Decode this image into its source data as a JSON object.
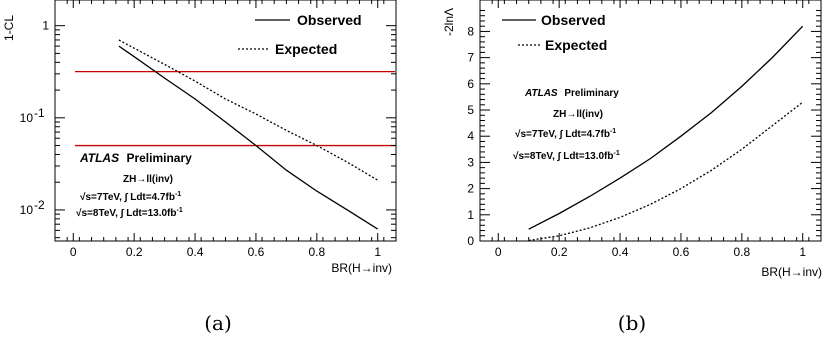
{
  "chart_data": [
    {
      "type": "line",
      "panel_caption": "(a)",
      "ylabel": "1-CL",
      "xlabel": "BR(H→inv)",
      "xlim": [
        -0.06,
        1.06
      ],
      "ylim": [
        0.0046,
        1.9
      ],
      "yscale": "log",
      "x_ticks": [
        "0",
        "0.2",
        "0.4",
        "0.6",
        "0.8",
        "1"
      ],
      "y_ticks": [
        {
          "v": 1,
          "t": "1"
        },
        {
          "v": 0.1,
          "t": "10"
        },
        {
          "v": 0.01,
          "t": "10"
        }
      ],
      "y_tick_exponents": [
        "",
        "-1",
        "-2"
      ],
      "series": [
        {
          "name": "Observed",
          "style": "solid",
          "color": "#000000",
          "x": [
            0.15,
            0.2,
            0.3,
            0.4,
            0.5,
            0.6,
            0.7,
            0.8,
            0.9,
            1.0
          ],
          "y": [
            0.6,
            0.46,
            0.27,
            0.16,
            0.09,
            0.05,
            0.027,
            0.016,
            0.01,
            0.0062
          ]
        },
        {
          "name": "Expected",
          "style": "dotted",
          "color": "#000000",
          "x": [
            0.15,
            0.2,
            0.3,
            0.4,
            0.5,
            0.6,
            0.7,
            0.8,
            0.9,
            1.0
          ],
          "y": [
            0.7,
            0.57,
            0.38,
            0.25,
            0.16,
            0.11,
            0.073,
            0.05,
            0.033,
            0.021
          ]
        }
      ],
      "hlines": [
        {
          "y": 0.317,
          "color": "#cc0000"
        },
        {
          "y": 0.05,
          "color": "#cc0000"
        }
      ],
      "legend_position": "top-right",
      "annotations": [
        "ATLAS",
        "Preliminary",
        "ZH→ll(inv)",
        "√s=7TeV, ∫ Ldt=4.7fb",
        "√s=8TeV, ∫ Ldt=13.0fb",
        "-1"
      ]
    },
    {
      "type": "line",
      "panel_caption": "(b)",
      "ylabel": "-2lnΛ",
      "xlabel": "BR(H→inv)",
      "xlim": [
        -0.06,
        1.06
      ],
      "ylim": [
        0,
        9.2
      ],
      "yscale": "linear",
      "x_ticks": [
        "0",
        "0.2",
        "0.4",
        "0.6",
        "0.8",
        "1"
      ],
      "y_ticks": [
        "0",
        "1",
        "2",
        "3",
        "4",
        "5",
        "6",
        "7",
        "8"
      ],
      "series": [
        {
          "name": "Observed",
          "style": "solid",
          "color": "#000000",
          "x": [
            0.1,
            0.2,
            0.3,
            0.4,
            0.5,
            0.6,
            0.7,
            0.8,
            0.9,
            1.0
          ],
          "y": [
            0.45,
            1.05,
            1.7,
            2.4,
            3.15,
            4.0,
            4.9,
            5.9,
            7.0,
            8.2
          ]
        },
        {
          "name": "Expected",
          "style": "dotted",
          "color": "#000000",
          "x": [
            0.1,
            0.2,
            0.3,
            0.4,
            0.5,
            0.6,
            0.7,
            0.8,
            0.9,
            1.0
          ],
          "y": [
            0.02,
            0.2,
            0.5,
            0.9,
            1.4,
            2.0,
            2.7,
            3.5,
            4.4,
            5.3
          ]
        }
      ],
      "legend_position": "top-left",
      "annotations": [
        "ATLAS",
        "Preliminary",
        "ZH→ll(inv)",
        "√s=7TeV, ∫ Ldt=4.7fb",
        "√s=8TeV, ∫ Ldt=13.0fb",
        "-1"
      ]
    }
  ]
}
